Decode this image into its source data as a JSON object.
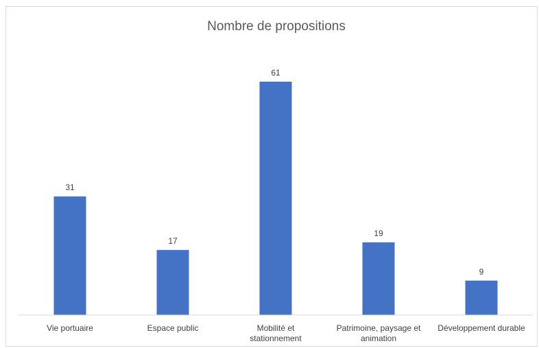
{
  "chart_data": {
    "type": "bar",
    "title": "Nombre de propositions",
    "categories": [
      "Vie portuaire",
      "Espace public",
      "Mobilité et stationnement",
      "Patrimoine, paysage et animation",
      "Développement durable"
    ],
    "category_lines": [
      [
        "Vie portuaire"
      ],
      [
        "Espace public"
      ],
      [
        "Mobilité et",
        "stationnement"
      ],
      [
        "Patrimoine, paysage et",
        "animation"
      ],
      [
        "Développement durable"
      ]
    ],
    "values": [
      31,
      17,
      61,
      19,
      9
    ],
    "xlabel": "",
    "ylabel": "",
    "ylim": [
      0,
      61
    ],
    "grid": false,
    "legend": "none",
    "bar_color": "#4472c4",
    "axis_color": "#d9d9d9"
  }
}
